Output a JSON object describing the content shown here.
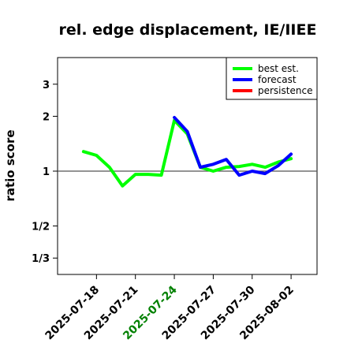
{
  "chart_data": {
    "type": "line",
    "title": "rel. edge displacement, IE/IIEE",
    "xlabel": "",
    "ylabel": "ratio score",
    "y_scale": "log",
    "ylim": [
      0.271,
      4.2
    ],
    "y_ticks": [
      {
        "value": 0.3333,
        "label": "1/3"
      },
      {
        "value": 0.5,
        "label": "1/2"
      },
      {
        "value": 1,
        "label": "1"
      },
      {
        "value": 2,
        "label": "2"
      },
      {
        "value": 3,
        "label": "3"
      }
    ],
    "reference_line": 1,
    "x_ticks": [
      {
        "date": "2025-07-18",
        "color": "#000000"
      },
      {
        "date": "2025-07-21",
        "color": "#000000"
      },
      {
        "date": "2025-07-24",
        "color": "#008000"
      },
      {
        "date": "2025-07-27",
        "color": "#000000"
      },
      {
        "date": "2025-07-30",
        "color": "#000000"
      },
      {
        "date": "2025-08-02",
        "color": "#000000"
      }
    ],
    "xlim": [
      "2025-07-15",
      "2025-08-04"
    ],
    "legend_position": "top-right",
    "series": [
      {
        "name": "best est.",
        "color": "#00ff00",
        "x": [
          "2025-07-17",
          "2025-07-18",
          "2025-07-19",
          "2025-07-20",
          "2025-07-21",
          "2025-07-22",
          "2025-07-23",
          "2025-07-24",
          "2025-07-25",
          "2025-07-26",
          "2025-07-27",
          "2025-07-28",
          "2025-07-29",
          "2025-07-30",
          "2025-07-31",
          "2025-08-01",
          "2025-08-02"
        ],
        "values": [
          1.28,
          1.22,
          1.05,
          0.83,
          0.96,
          0.96,
          0.95,
          1.9,
          1.6,
          1.05,
          1.0,
          1.05,
          1.06,
          1.09,
          1.05,
          1.12,
          1.17
        ]
      },
      {
        "name": "forecast",
        "color": "#0000ff",
        "x": [
          "2025-07-24",
          "2025-07-25",
          "2025-07-26",
          "2025-07-27",
          "2025-07-28",
          "2025-07-29",
          "2025-07-30",
          "2025-07-31",
          "2025-08-01",
          "2025-08-02"
        ],
        "values": [
          1.97,
          1.65,
          1.05,
          1.09,
          1.16,
          0.95,
          1.0,
          0.97,
          1.07,
          1.24
        ]
      },
      {
        "name": "persistence",
        "color": "#ff0000",
        "x": [],
        "values": []
      }
    ]
  }
}
